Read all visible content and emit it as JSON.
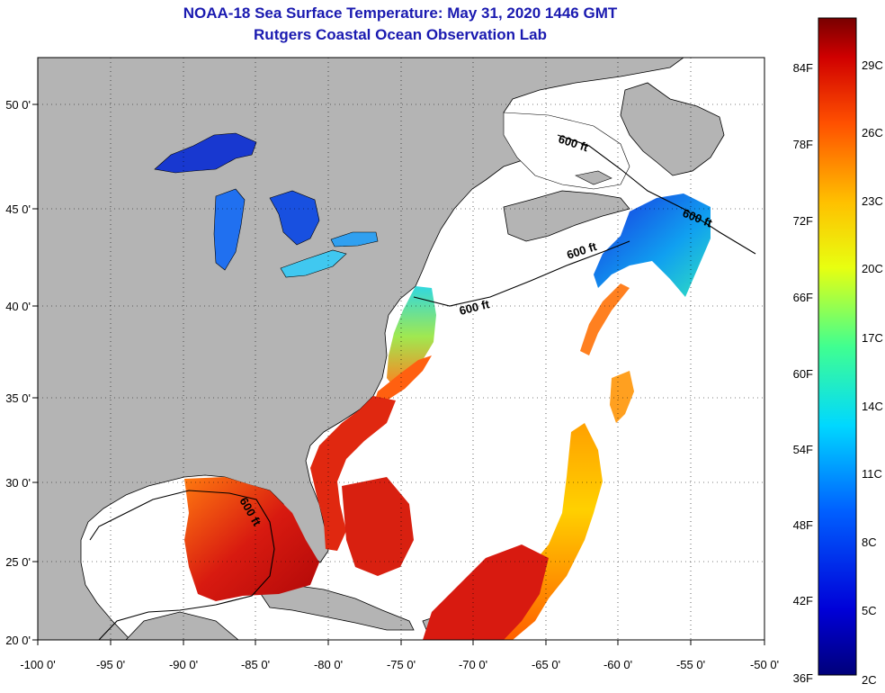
{
  "title_line1": "NOAA-18 Sea Surface Temperature:  May 31, 2020 1446 GMT",
  "title_line2": "Rutgers Coastal Ocean Observation Lab",
  "axes": {
    "lon_ticks": [
      "-100 0'",
      "-95 0'",
      "-90 0'",
      "-85 0'",
      "-80 0'",
      "-75 0'",
      "-70 0'",
      "-65 0'",
      "-60 0'",
      "-55 0'",
      "-50 0'"
    ],
    "lat_ticks": [
      "20 0'",
      "25 0'",
      "30 0'",
      "35 0'",
      "40 0'",
      "45 0'",
      "50 0'"
    ]
  },
  "contour_labels": [
    "600 ft",
    "600 ft",
    "600 ft",
    "600 ft",
    "600 ft"
  ],
  "colorbar": {
    "fahrenheit": [
      "84F",
      "78F",
      "72F",
      "66F",
      "60F",
      "54F",
      "48F",
      "42F",
      "36F"
    ],
    "celsius": [
      "29C",
      "26C",
      "23C",
      "20C",
      "17C",
      "14C",
      "11C",
      "8C",
      "5C",
      "2C"
    ]
  },
  "colors": {
    "land": "#b4b4b4",
    "ocean_nodata": "#ffffff",
    "title": "#1a1ab0",
    "warm": "#d82010",
    "cold": "#1838d0"
  }
}
